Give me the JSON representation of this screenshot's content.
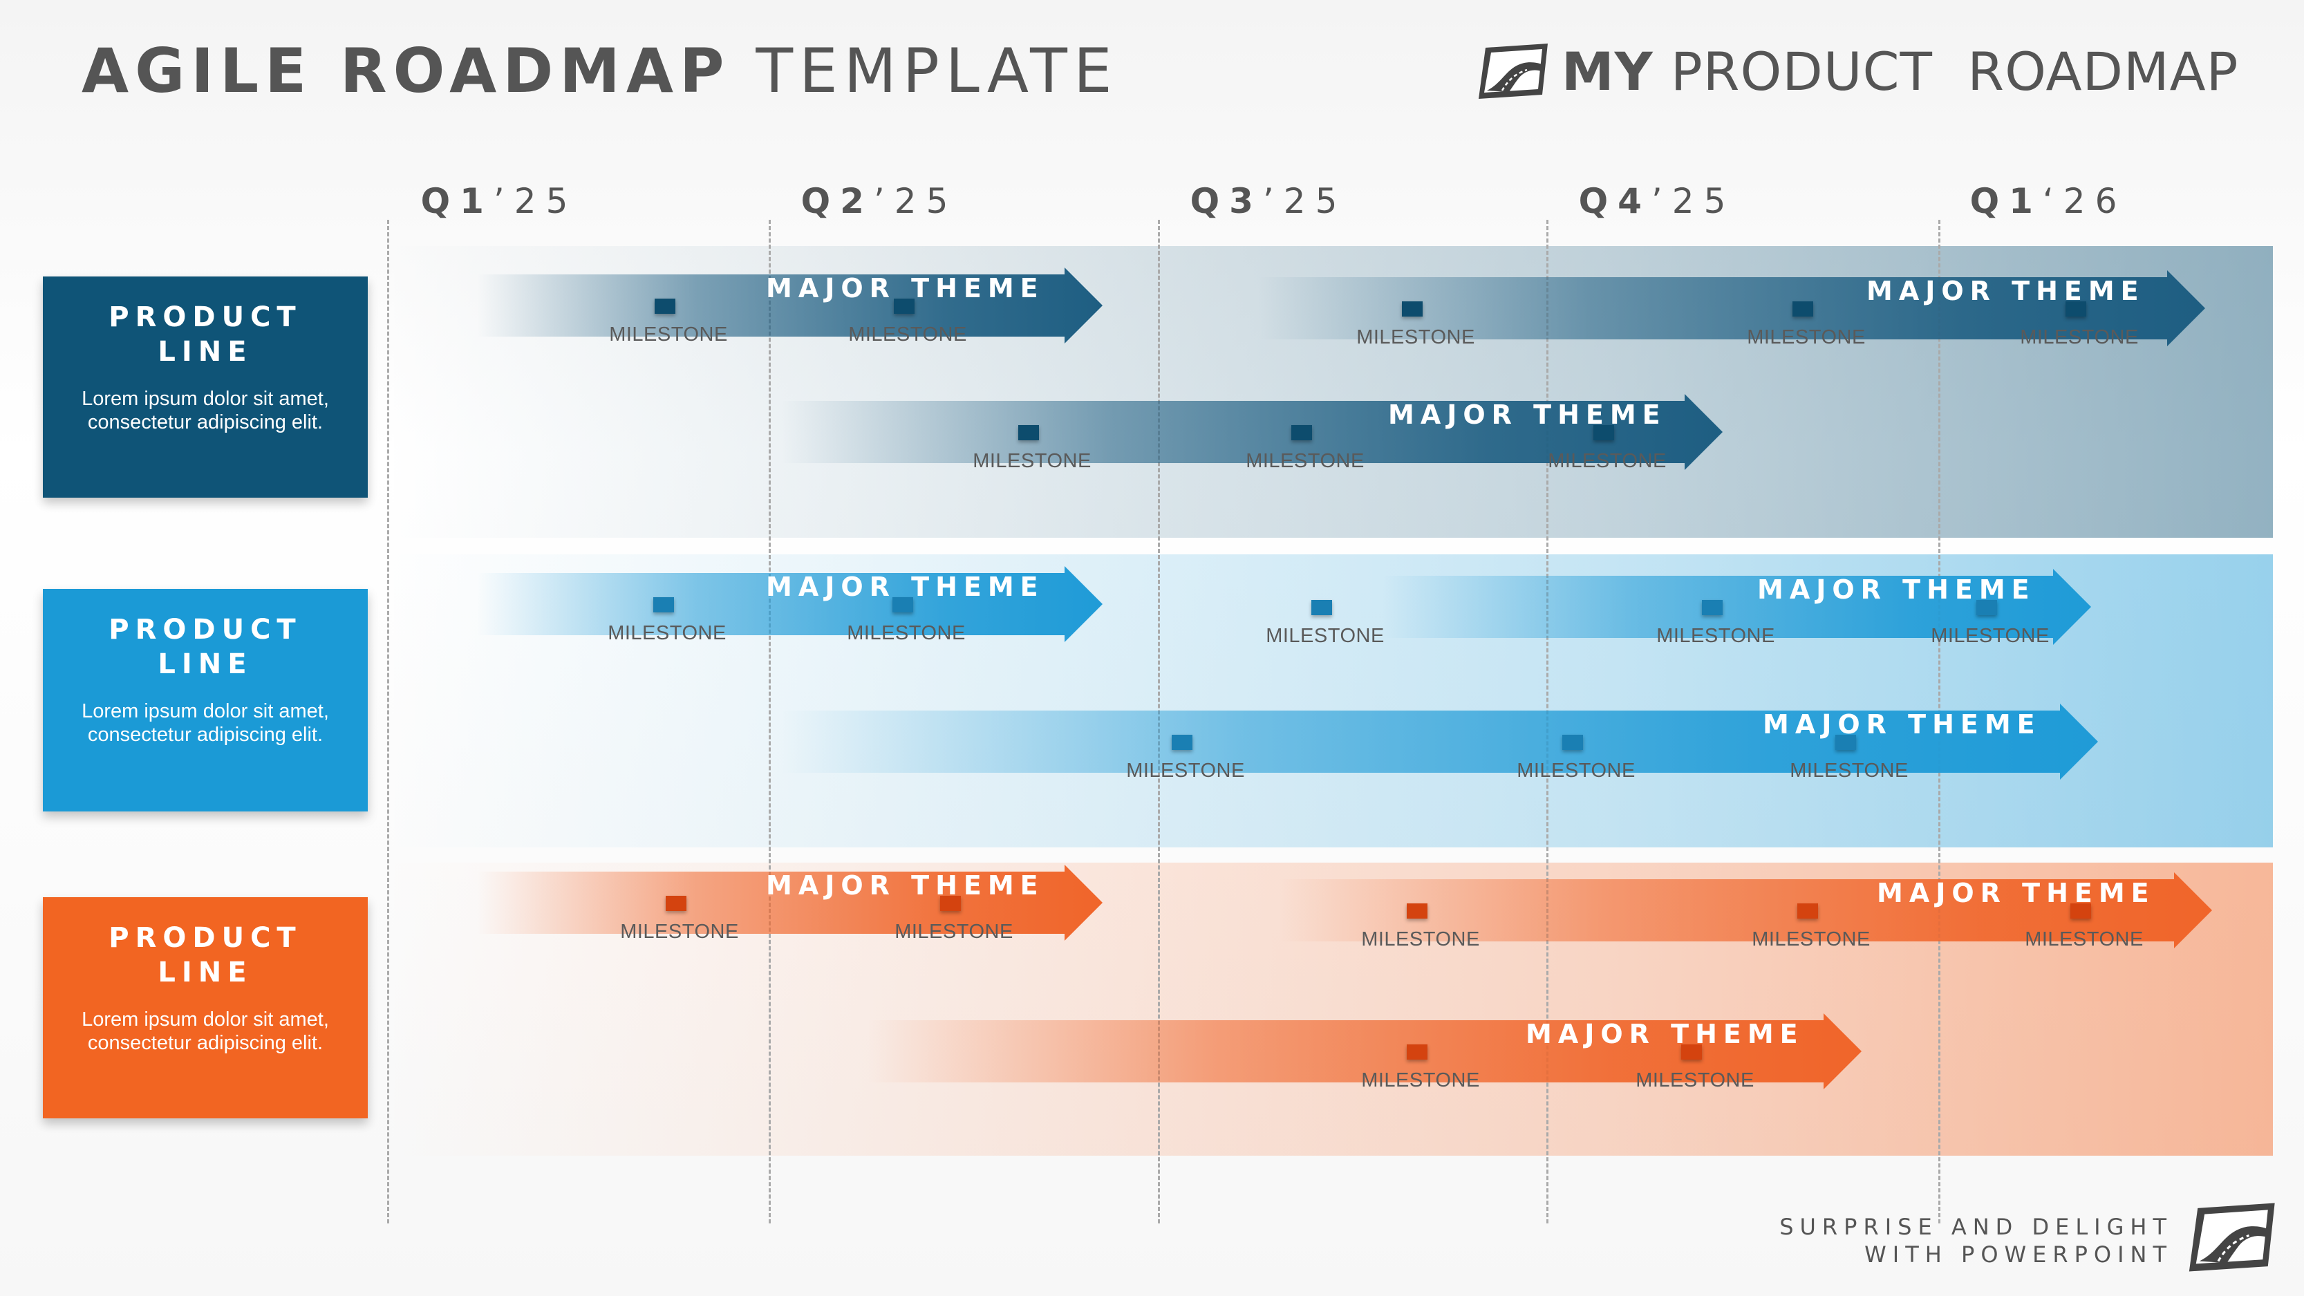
{
  "title": {
    "bold": "AGILE ROADMAP",
    "light": "TEMPLATE"
  },
  "brand": {
    "bold": "MY",
    "light": "PRODUCT  ROADMAP",
    "logo_icon": "roadmap-road-logo-icon"
  },
  "quarters": [
    {
      "bold": "Q1",
      "light": "’25"
    },
    {
      "bold": "Q2",
      "light": "’25"
    },
    {
      "bold": "Q3",
      "light": "’25"
    },
    {
      "bold": "Q4",
      "light": "’25"
    },
    {
      "bold": "Q1",
      "light": "‘26"
    }
  ],
  "product_lines": [
    {
      "title_line1": "PRODUCT",
      "title_line2": "LINE",
      "description": "Lorem ipsum dolor sit amet, consectetur adipiscing elit.",
      "color": "#0f5477",
      "arrow_color": "#1e5e82",
      "marker_color": "#0d4c6d",
      "themes": [
        {
          "label": "MAJOR THEME",
          "milestones": [
            "MILESTONE",
            "MILESTONE"
          ]
        },
        {
          "label": "MAJOR THEME",
          "milestones": [
            "MILESTONE",
            "MILESTONE",
            "MILESTONE"
          ]
        },
        {
          "label": "MAJOR THEME",
          "milestones": [
            "MILESTONE",
            "MILESTONE",
            "MILESTONE"
          ]
        }
      ]
    },
    {
      "title_line1": "PRODUCT",
      "title_line2": "LINE",
      "description": "Lorem ipsum dolor sit amet, consectetur adipiscing elit.",
      "color": "#1b9ad6",
      "arrow_color": "#1f9bd7",
      "marker_color": "#1a7fb3",
      "themes": [
        {
          "label": "MAJOR THEME",
          "milestones": [
            "MILESTONE",
            "MILESTONE"
          ]
        },
        {
          "label": "MAJOR THEME",
          "milestones": [
            "MILESTONE",
            "MILESTONE",
            "MILESTONE"
          ]
        },
        {
          "label": "MAJOR THEME",
          "milestones": [
            "MILESTONE",
            "MILESTONE",
            "MILESTONE"
          ]
        }
      ]
    },
    {
      "title_line1": "PRODUCT",
      "title_line2": "LINE",
      "description": "Lorem ipsum dolor sit amet, consectetur adipiscing elit.",
      "color": "#f26522",
      "arrow_color": "#f0652a",
      "marker_color": "#d4430f",
      "themes": [
        {
          "label": "MAJOR THEME",
          "milestones": [
            "MILESTONE",
            "MILESTONE"
          ]
        },
        {
          "label": "MAJOR THEME",
          "milestones": [
            "MILESTONE",
            "MILESTONE",
            "MILESTONE"
          ]
        },
        {
          "label": "MAJOR THEME",
          "milestones": [
            "MILESTONE",
            "MILESTONE"
          ]
        }
      ]
    }
  ],
  "tagline": {
    "line1": "SURPRISE AND DELIGHT",
    "line2": "WITH POWERPOINT"
  }
}
